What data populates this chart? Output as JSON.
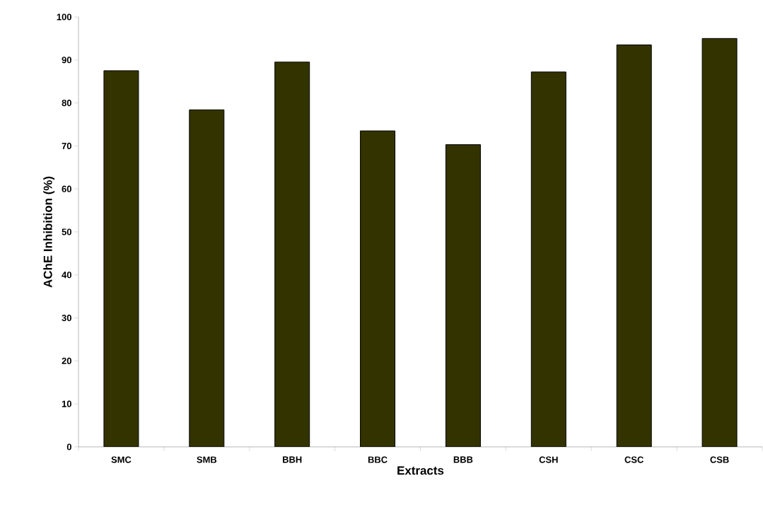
{
  "chart_data": {
    "type": "bar",
    "xlabel": "Extracts",
    "ylabel": "AChE Inhibition (%)",
    "categories": [
      "SMC",
      "SMB",
      "BBH",
      "BBC",
      "BBB",
      "CSH",
      "CSC",
      "CSB"
    ],
    "values": [
      87.5,
      78.4,
      89.5,
      73.5,
      70.3,
      87.2,
      93.5,
      95.0
    ],
    "color": "#333300",
    "ylim": [
      0,
      100
    ],
    "yticks": [
      0,
      10,
      20,
      30,
      40,
      50,
      60,
      70,
      80,
      90,
      100
    ],
    "grid": false
  }
}
